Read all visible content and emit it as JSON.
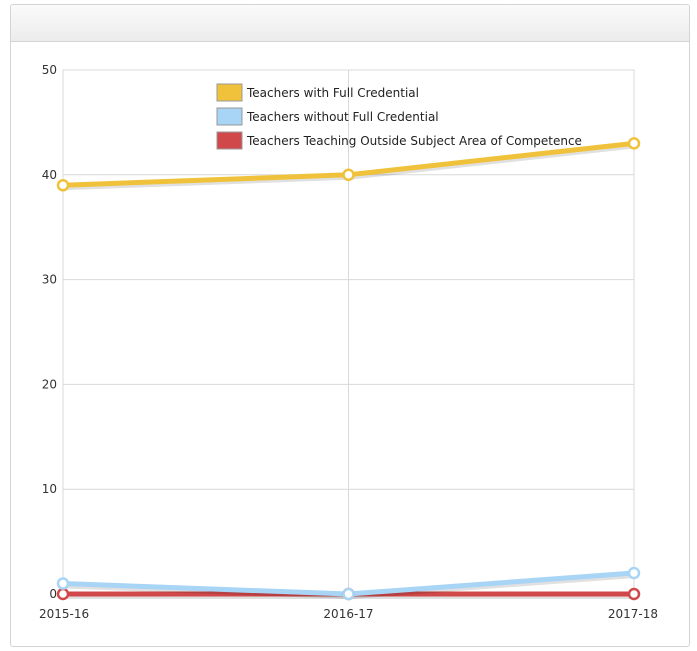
{
  "chart_data": {
    "type": "line",
    "categories": [
      "2015-16",
      "2016-17",
      "2017-18"
    ],
    "ylim": [
      0,
      50
    ],
    "yticks": [
      0,
      10,
      20,
      30,
      40,
      50
    ],
    "grid": true,
    "legend_position": "top-center",
    "series": [
      {
        "name": "Teachers with Full Credential",
        "values": [
          39,
          40,
          43
        ],
        "color": "#f0c23b"
      },
      {
        "name": "Teachers without Full Credential",
        "values": [
          1,
          0,
          2
        ],
        "color": "#a8d4f5"
      },
      {
        "name": "Teachers Teaching Outside Subject Area of Competence",
        "values": [
          0,
          0,
          0
        ],
        "color": "#d0484a"
      }
    ]
  }
}
